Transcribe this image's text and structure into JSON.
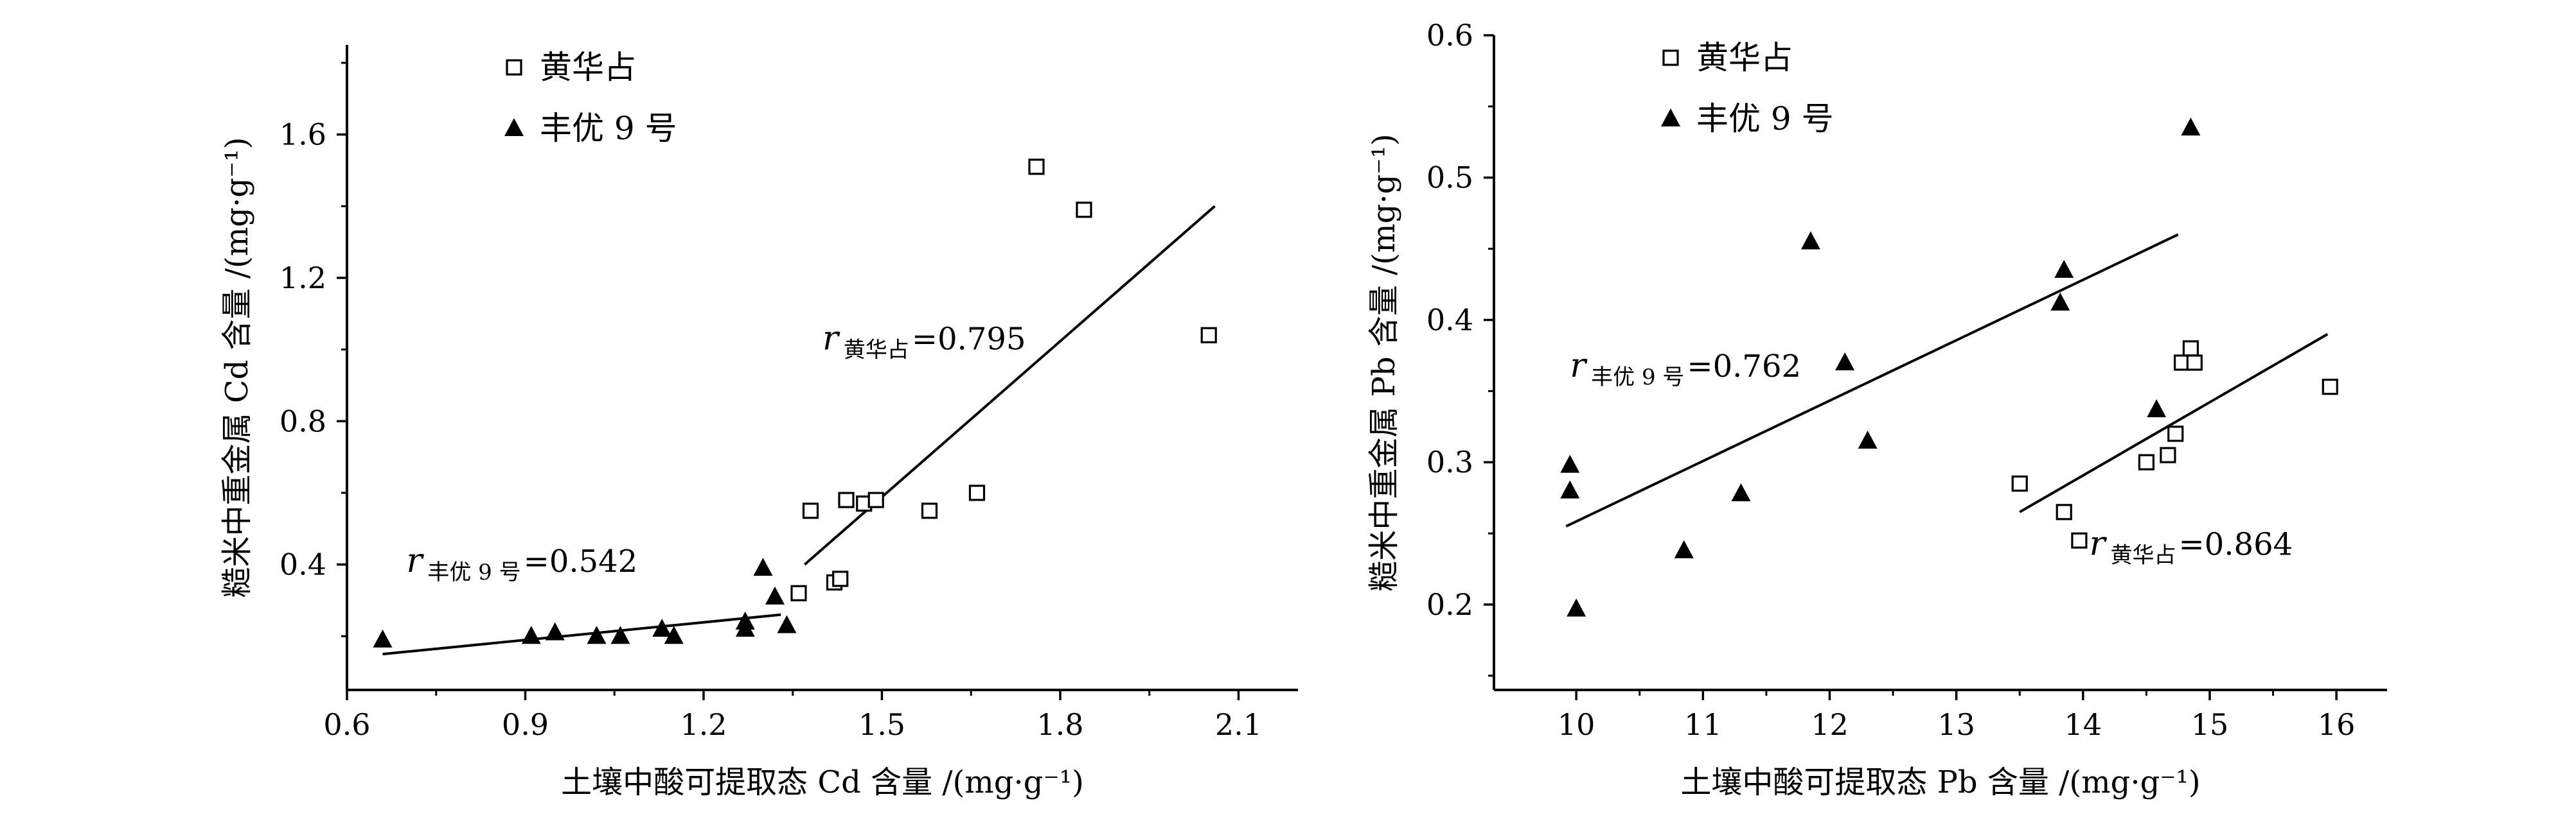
{
  "chart_data": [
    {
      "type": "scatter",
      "xlabel": "土壤中酸可提取态 Cd 含量 /(mg·g⁻¹)",
      "ylabel": "糙米中重金属 Cd 含量 /(mg·g⁻¹)",
      "xlim": [
        0.6,
        2.2
      ],
      "ylim": [
        0.05,
        1.85
      ],
      "xticks": [
        0.6,
        0.9,
        1.2,
        1.5,
        1.8,
        2.1
      ],
      "yticks": [
        0.4,
        0.8,
        1.2,
        1.6
      ],
      "xtick_labels": [
        "0.6",
        "0.9",
        "1.2",
        "1.5",
        "1.8",
        "2.1"
      ],
      "ytick_labels": [
        "0.4",
        "0.8",
        "1.2",
        "1.6"
      ],
      "legend": [
        "黄华占",
        "丰优 9 号"
      ],
      "series": [
        {
          "name": "黄华占",
          "marker": "open-square",
          "points": [
            [
              1.36,
              0.32
            ],
            [
              1.38,
              0.55
            ],
            [
              1.42,
              0.35
            ],
            [
              1.43,
              0.36
            ],
            [
              1.44,
              0.58
            ],
            [
              1.47,
              0.57
            ],
            [
              1.49,
              0.58
            ],
            [
              1.58,
              0.55
            ],
            [
              1.66,
              0.6
            ],
            [
              1.76,
              1.51
            ],
            [
              1.84,
              1.39
            ],
            [
              2.05,
              1.04
            ]
          ],
          "fit": [
            [
              1.37,
              0.4
            ],
            [
              2.06,
              1.4
            ]
          ],
          "annotation": {
            "r": "r",
            "subscript": "黄华占",
            "value": "=0.795",
            "at": [
              1.4,
              1.0
            ]
          }
        },
        {
          "name": "丰优 9 号",
          "marker": "filled-triangle",
          "points": [
            [
              0.66,
              0.19
            ],
            [
              0.91,
              0.2
            ],
            [
              0.95,
              0.21
            ],
            [
              1.02,
              0.2
            ],
            [
              1.06,
              0.2
            ],
            [
              1.13,
              0.22
            ],
            [
              1.15,
              0.2
            ],
            [
              1.27,
              0.22
            ],
            [
              1.27,
              0.24
            ],
            [
              1.3,
              0.39
            ],
            [
              1.32,
              0.31
            ],
            [
              1.34,
              0.23
            ]
          ],
          "fit": [
            [
              0.66,
              0.15
            ],
            [
              1.33,
              0.26
            ]
          ],
          "annotation": {
            "r": "r",
            "subscript": "丰优 9 号",
            "value": "=0.542",
            "at": [
              0.7,
              0.38
            ]
          }
        }
      ]
    },
    {
      "type": "scatter",
      "xlabel": "土壤中酸可提取态 Pb 含量 /(mg·g⁻¹)",
      "ylabel": "糙米中重金属 Pb 含量 /(mg·g⁻¹)",
      "xlim": [
        9.35,
        16.4
      ],
      "ylim": [
        0.14,
        0.6
      ],
      "xticks": [
        10,
        11,
        12,
        13,
        14,
        15,
        16
      ],
      "yticks": [
        0.2,
        0.3,
        0.4,
        0.5,
        0.6
      ],
      "xtick_labels": [
        "10",
        "11",
        "12",
        "13",
        "14",
        "15",
        "16"
      ],
      "ytick_labels": [
        "0.2",
        "0.3",
        "0.4",
        "0.5",
        "0.6"
      ],
      "legend": [
        "黄华占",
        "丰优 9 号"
      ],
      "series": [
        {
          "name": "黄华占",
          "marker": "open-square",
          "points": [
            [
              13.5,
              0.285
            ],
            [
              13.85,
              0.265
            ],
            [
              13.97,
              0.245
            ],
            [
              14.5,
              0.3
            ],
            [
              14.67,
              0.305
            ],
            [
              14.73,
              0.32
            ],
            [
              14.78,
              0.37
            ],
            [
              14.85,
              0.38
            ],
            [
              14.88,
              0.37
            ],
            [
              15.95,
              0.353
            ]
          ],
          "fit": [
            [
              13.5,
              0.265
            ],
            [
              15.93,
              0.39
            ]
          ],
          "annotation": {
            "r": "r",
            "subscript": "黄华占",
            "value": "=0.864",
            "at": [
              14.05,
              0.235
            ]
          }
        },
        {
          "name": "丰优 9 号",
          "marker": "filled-triangle",
          "points": [
            [
              9.95,
              0.298
            ],
            [
              9.95,
              0.28
            ],
            [
              10.0,
              0.197
            ],
            [
              10.85,
              0.238
            ],
            [
              11.3,
              0.278
            ],
            [
              11.85,
              0.455
            ],
            [
              12.12,
              0.37
            ],
            [
              12.3,
              0.315
            ],
            [
              13.82,
              0.412
            ],
            [
              13.85,
              0.435
            ],
            [
              14.58,
              0.337
            ],
            [
              14.85,
              0.535
            ]
          ],
          "fit": [
            [
              9.92,
              0.255
            ],
            [
              14.75,
              0.46
            ]
          ],
          "annotation": {
            "r": "r",
            "subscript": "丰优 9 号",
            "value": "=0.762",
            "at": [
              9.95,
              0.36
            ]
          }
        }
      ]
    }
  ]
}
